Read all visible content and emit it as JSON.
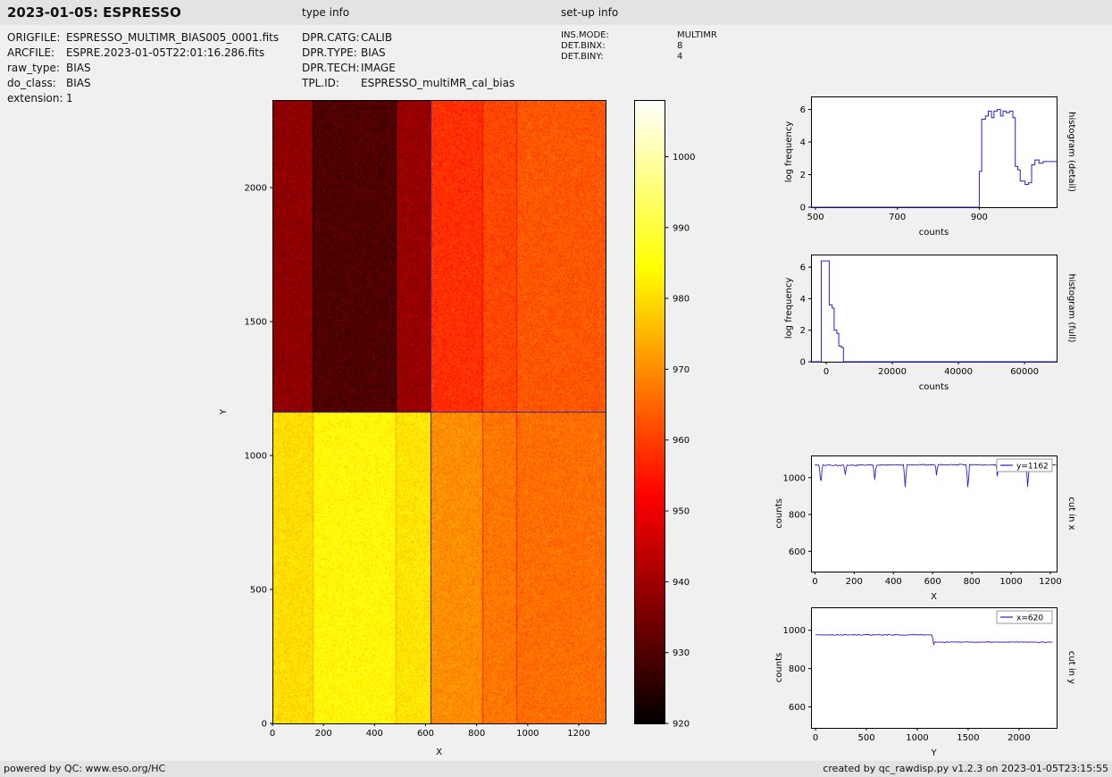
{
  "header": {
    "title": "2023-01-05: ESPRESSO",
    "type_info_label": "type info",
    "setup_info_label": "set-up info"
  },
  "metadata": {
    "file": [
      {
        "key": "ORIGFILE:",
        "value": "ESPRESSO_MULTIMR_BIAS005_0001.fits"
      },
      {
        "key": "ARCFILE:",
        "value": "ESPRE.2023-01-05T22:01:16.286.fits"
      },
      {
        "key": "raw_type:",
        "value": "BIAS"
      },
      {
        "key": "do_class:",
        "value": "BIAS"
      },
      {
        "key": "extension:",
        "value": "1"
      }
    ],
    "type_info": [
      {
        "key": "DPR.CATG:",
        "value": "CALIB"
      },
      {
        "key": "DPR.TYPE:",
        "value": "BIAS"
      },
      {
        "key": "DPR.TECH:",
        "value": "IMAGE"
      },
      {
        "key": "TPL.ID:",
        "value": "ESPRESSO_multiMR_cal_bias"
      }
    ],
    "setup_info": [
      {
        "key": "INS.MODE:",
        "value": "MULTIMR"
      },
      {
        "key": "DET.BINX:",
        "value": "8"
      },
      {
        "key": "DET.BINY:",
        "value": "4"
      }
    ]
  },
  "footer": {
    "left": "powered by QC: www.eso.org/HC",
    "right": "created by qc_rawdisp.py v1.2.3 on 2023-01-05T23:15:55"
  },
  "chart_data": [
    {
      "id": "main_image",
      "type": "heatmap",
      "xlabel": "X",
      "ylabel": "Y",
      "xlim": [
        0,
        1305
      ],
      "ylim": [
        0,
        2327
      ],
      "xticks": [
        0,
        200,
        400,
        600,
        800,
        1000,
        1200
      ],
      "yticks": [
        0,
        500,
        1000,
        1500,
        2000
      ],
      "colormap": "hot",
      "colorbar_range": [
        920,
        1008
      ],
      "colorbar_ticks": [
        920,
        930,
        940,
        950,
        960,
        970,
        980,
        990,
        1000
      ],
      "crosshair": {
        "x": 620,
        "y": 1162
      },
      "crosshair_color": "#26269c",
      "split_y": 1162,
      "noise_sigma": 2.6,
      "regions": {
        "column_edges": [
          0,
          157,
          483,
          620,
          822,
          955,
          1305
        ],
        "top_values": [
          938,
          930,
          939,
          958,
          961,
          963
        ],
        "bottom_values": [
          980,
          984,
          981,
          970,
          967,
          966
        ]
      }
    },
    {
      "id": "hist_detail",
      "type": "line",
      "xlabel": "counts",
      "ylabel": "log frequency",
      "right_label": "histogram (detail)",
      "line_color": "#2323cc",
      "xlim": [
        489,
        1089
      ],
      "ylim": [
        0,
        6.8
      ],
      "xticks": [
        500,
        700,
        900
      ],
      "yticks": [
        0,
        2,
        4,
        6
      ],
      "points": [
        [
          489,
          0
        ],
        [
          900,
          0
        ],
        [
          900,
          2.2
        ],
        [
          906,
          2.2
        ],
        [
          906,
          5.4
        ],
        [
          915,
          5.4
        ],
        [
          915,
          5.6
        ],
        [
          922,
          5.6
        ],
        [
          922,
          5.9
        ],
        [
          930,
          5.9
        ],
        [
          930,
          5.5
        ],
        [
          936,
          5.5
        ],
        [
          936,
          5.9
        ],
        [
          944,
          5.9
        ],
        [
          944,
          6.0
        ],
        [
          952,
          6.0
        ],
        [
          952,
          5.6
        ],
        [
          958,
          5.6
        ],
        [
          958,
          5.9
        ],
        [
          966,
          5.9
        ],
        [
          966,
          5.8
        ],
        [
          974,
          5.8
        ],
        [
          974,
          5.9
        ],
        [
          982,
          5.9
        ],
        [
          982,
          5.5
        ],
        [
          988,
          5.5
        ],
        [
          988,
          2.5
        ],
        [
          994,
          2.5
        ],
        [
          994,
          2.3
        ],
        [
          1000,
          2.3
        ],
        [
          1000,
          1.6
        ],
        [
          1012,
          1.6
        ],
        [
          1012,
          1.4
        ],
        [
          1020,
          1.4
        ],
        [
          1020,
          1.5
        ],
        [
          1028,
          1.5
        ],
        [
          1028,
          2.6
        ],
        [
          1036,
          2.6
        ],
        [
          1036,
          2.9
        ],
        [
          1046,
          2.9
        ],
        [
          1046,
          2.7
        ],
        [
          1056,
          2.7
        ],
        [
          1056,
          2.8
        ],
        [
          1089,
          2.8
        ]
      ]
    },
    {
      "id": "hist_full",
      "type": "line",
      "xlabel": "counts",
      "ylabel": "log frequency",
      "right_label": "histogram (full)",
      "line_color": "#2323cc",
      "xlim": [
        -4600,
        69700
      ],
      "ylim": [
        0,
        6.8
      ],
      "xticks": [
        0,
        20000,
        40000,
        60000
      ],
      "yticks": [
        0,
        2,
        4,
        6
      ],
      "points": [
        [
          -4600,
          0
        ],
        [
          -1500,
          0
        ],
        [
          -1500,
          6.4
        ],
        [
          900,
          6.4
        ],
        [
          900,
          3.6
        ],
        [
          1800,
          3.6
        ],
        [
          1800,
          3.4
        ],
        [
          2400,
          3.4
        ],
        [
          2400,
          2.0
        ],
        [
          3200,
          2.0
        ],
        [
          3200,
          1.8
        ],
        [
          3800,
          1.8
        ],
        [
          3800,
          1.0
        ],
        [
          4600,
          1.0
        ],
        [
          4600,
          0.9
        ],
        [
          5200,
          0.9
        ],
        [
          5200,
          0
        ],
        [
          69700,
          0
        ]
      ]
    },
    {
      "id": "cut_x",
      "type": "line",
      "xlabel": "X",
      "ylabel": "counts",
      "right_label": "cut in x",
      "legend": "y=1162",
      "line_color": "#2323cc",
      "xlim": [
        -20,
        1232
      ],
      "ylim": [
        490,
        1120
      ],
      "xticks": [
        0,
        200,
        400,
        600,
        800,
        1000,
        1200
      ],
      "yticks": [
        600,
        800,
        1000
      ],
      "noise": 4,
      "points": [
        [
          0,
          1068
        ],
        [
          22,
          1068
        ],
        [
          30,
          958
        ],
        [
          38,
          1068
        ],
        [
          148,
          1066
        ],
        [
          155,
          1012
        ],
        [
          162,
          1066
        ],
        [
          298,
          1068
        ],
        [
          305,
          988
        ],
        [
          312,
          1068
        ],
        [
          452,
          1068
        ],
        [
          460,
          948
        ],
        [
          468,
          1068
        ],
        [
          614,
          1070
        ],
        [
          620,
          1008
        ],
        [
          626,
          1070
        ],
        [
          772,
          1070
        ],
        [
          780,
          932
        ],
        [
          788,
          1070
        ],
        [
          924,
          1068
        ],
        [
          930,
          998
        ],
        [
          936,
          1068
        ],
        [
          1078,
          1066
        ],
        [
          1085,
          938
        ],
        [
          1092,
          1066
        ],
        [
          1230,
          1068
        ]
      ]
    },
    {
      "id": "cut_y",
      "type": "line",
      "xlabel": "Y",
      "ylabel": "counts",
      "right_label": "cut in y",
      "legend": "x=620",
      "line_color": "#2323cc",
      "xlim": [
        -45,
        2370
      ],
      "ylim": [
        490,
        1120
      ],
      "xticks": [
        0,
        500,
        1000,
        1500,
        2000
      ],
      "yticks": [
        600,
        800,
        1000
      ],
      "noise": 3,
      "points": [
        [
          0,
          976
        ],
        [
          1150,
          976
        ],
        [
          1158,
          900
        ],
        [
          1162,
          938
        ],
        [
          2330,
          938
        ]
      ]
    }
  ]
}
